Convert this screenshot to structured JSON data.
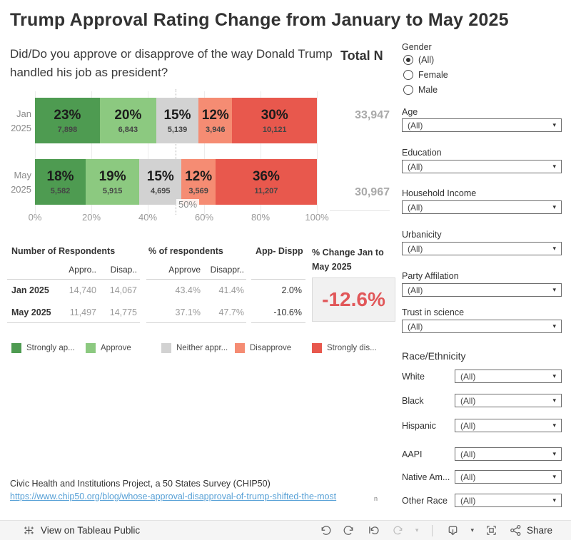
{
  "header": {
    "title": "Trump Approval Rating Change from January to May 2025",
    "subtitle": "Did/Do you approve or disapprove of the way Donald Trump handled his job as president?"
  },
  "total_n": {
    "label": "Total N",
    "values": [
      "33,947",
      "30,967"
    ]
  },
  "chart_data": {
    "type": "bar",
    "stacked": true,
    "orientation": "horizontal",
    "title": "Did/Do you approve or disapprove of the way Donald Trump handled his job as president?",
    "categories": [
      "Jan 2025",
      "May 2025"
    ],
    "row_labels": [
      [
        "Jan",
        "2025"
      ],
      [
        "May",
        "2025"
      ]
    ],
    "segments": [
      "Strongly approve",
      "Approve",
      "Neither approve nor disapprove",
      "Disapprove",
      "Strongly disapprove"
    ],
    "colors": [
      "#4e9b51",
      "#8cc980",
      "#d2d2d2",
      "#f58c73",
      "#e8584d"
    ],
    "series": [
      {
        "name": "Jan 2025",
        "pct": [
          23,
          20,
          15,
          12,
          30
        ],
        "pct_labels": [
          "23%",
          "20%",
          "15%",
          "12%",
          "30%"
        ],
        "counts": [
          "7,898",
          "6,843",
          "5,139",
          "3,946",
          "10,121"
        ]
      },
      {
        "name": "May 2025",
        "pct": [
          18,
          19,
          15,
          12,
          36
        ],
        "pct_labels": [
          "18%",
          "19%",
          "15%",
          "12%",
          "36%"
        ],
        "counts": [
          "5,582",
          "5,915",
          "4,695",
          "3,569",
          "11,207"
        ]
      }
    ],
    "x_ticks": [
      "0%",
      "20%",
      "40%",
      "60%",
      "80%",
      "100%"
    ],
    "xlim": [
      0,
      100
    ],
    "reference_line": {
      "value": 50,
      "label": "50%"
    },
    "grid": true,
    "legend_position": "bottom"
  },
  "summary_tables": {
    "respondents": {
      "title": "Number of Respondents",
      "columns": [
        "Appro..",
        "Disap.."
      ],
      "rows": [
        {
          "label": "Jan 2025",
          "values": [
            "14,740",
            "14,067"
          ]
        },
        {
          "label": "May 2025",
          "values": [
            "11,497",
            "14,775"
          ]
        }
      ]
    },
    "percent": {
      "title": "% of respondents",
      "columns": [
        "Approve",
        "Disappr.."
      ],
      "rows": [
        {
          "label": "Jan 2025",
          "values": [
            "43.4%",
            "41.4%"
          ]
        },
        {
          "label": "May 2025",
          "values": [
            "37.1%",
            "47.7%"
          ]
        }
      ]
    },
    "app_minus_disapp": {
      "title": "App- Dispp",
      "rows": [
        "2.0%",
        "-10.6%"
      ]
    },
    "pct_change": {
      "title": "% Change Jan to May 2025",
      "value": "-12.6%",
      "color": "#e15759"
    }
  },
  "legend": {
    "items": [
      {
        "label": "Strongly ap...",
        "color": "#4e9b51"
      },
      {
        "label": "Approve",
        "color": "#8cc980"
      },
      {
        "label": "Neither appr...",
        "color": "#d2d2d2"
      },
      {
        "label": "Disapprove",
        "color": "#f58c73"
      },
      {
        "label": "Strongly dis...",
        "color": "#e8584d"
      }
    ]
  },
  "filters": {
    "gender": {
      "label": "Gender",
      "options": [
        {
          "label": "(All)",
          "selected": true
        },
        {
          "label": "Female",
          "selected": false
        },
        {
          "label": "Male",
          "selected": false
        }
      ]
    },
    "dropdowns": [
      {
        "label": "Age",
        "value": "(All)"
      },
      {
        "label": "Education",
        "value": "(All)"
      },
      {
        "label": "Household Income",
        "value": "(All)"
      },
      {
        "label": "Urbanicity",
        "value": "(All)"
      },
      {
        "label": "Party Affilation",
        "value": "(All)"
      },
      {
        "label": "Trust in science",
        "value": "(All)"
      }
    ],
    "race": {
      "label": "Race/Ethnicity",
      "rows": [
        {
          "label": "White",
          "value": "(All)"
        },
        {
          "label": "Black",
          "value": "(All)"
        },
        {
          "label": "Hispanic",
          "value": "(All)"
        },
        {
          "label": "AAPI",
          "value": "(All)"
        },
        {
          "label": "Native Am...",
          "value": "(All)"
        },
        {
          "label": "Other Race",
          "value": "(All)"
        }
      ]
    }
  },
  "footer": {
    "source": "Civic Health and Institutions Project, a 50 States Survey (CHIP50)",
    "link_text": "https://www.chip50.org/blog/whose-approval-disapproval-of-trump-shifted-the-most",
    "mark": "n"
  },
  "toolbar": {
    "view_label": "View on Tableau Public",
    "share_label": "Share"
  }
}
